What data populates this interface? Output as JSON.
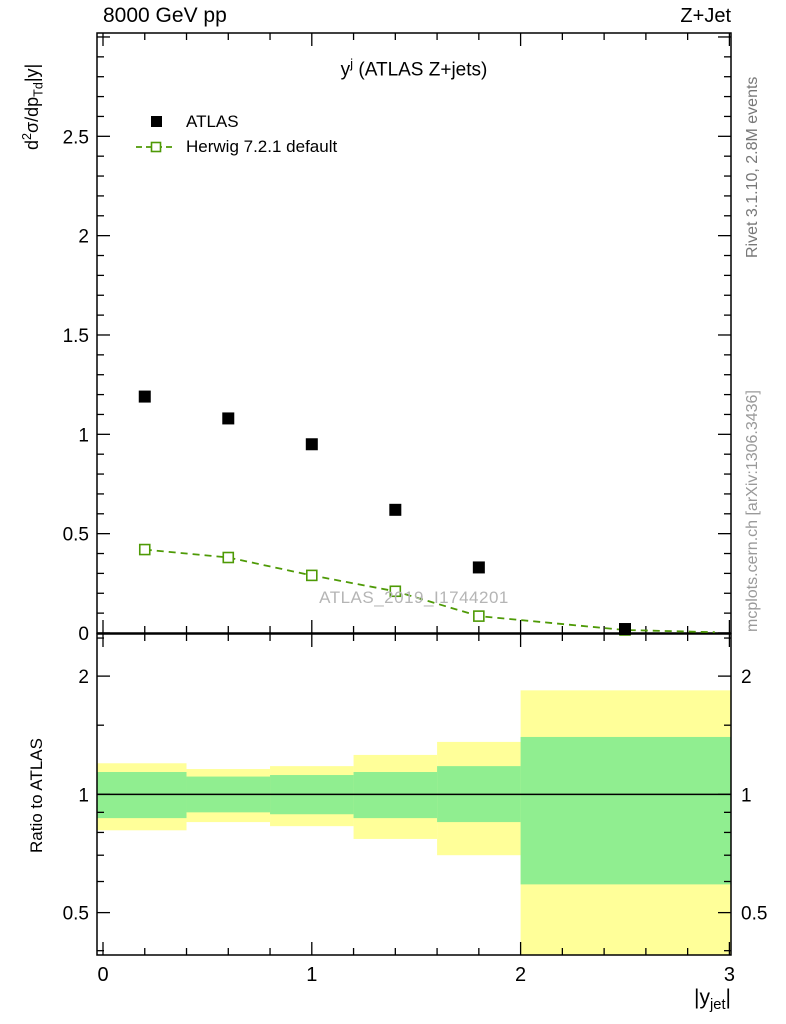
{
  "header": {
    "left": "8000 GeV pp",
    "right": "Z+Jet"
  },
  "sidebar_right": {
    "top": "Rivet 3.1.10,  2.8M events",
    "bottom": "mcplots.cern.ch [arXiv:1306.3436]"
  },
  "watermark": "ATLAS_2019_I1744201",
  "main": {
    "title_segments": [
      {
        "t": "y"
      },
      {
        "t": "j",
        "sup": true
      },
      {
        "t": " (ATLAS Z+jets)"
      }
    ],
    "ylabel_segments": [
      {
        "t": "d"
      },
      {
        "t": "2",
        "sup": true
      },
      {
        "t": "σ/dp"
      },
      {
        "t": "Td",
        "sub": true
      },
      {
        "t": "|y|"
      }
    ],
    "legend": [
      {
        "label": "ATLAS",
        "marker": "filled-square",
        "color": "#000000"
      },
      {
        "label": "Herwig 7.2.1 default",
        "marker": "open-square-dashed",
        "color": "#4e9a06"
      }
    ]
  },
  "ratio": {
    "ylabel": "Ratio to ATLAS"
  },
  "xaxis": {
    "label_segments": [
      {
        "t": "|y"
      },
      {
        "t": "jet",
        "sub": true
      },
      {
        "t": "|"
      }
    ]
  },
  "chart_data": [
    {
      "type": "scatter",
      "title": "y^j (ATLAS Z+jets)",
      "xlabel": "|y_jet|",
      "ylabel": "d^2σ/dp_T d|y|",
      "xlim": [
        0,
        3
      ],
      "ylim": [
        0,
        3.02
      ],
      "x_major_ticks": [
        0,
        1,
        2,
        3
      ],
      "x_minor_step": 0.2,
      "y_tick_labels": [
        0,
        0.5,
        1,
        1.5,
        2,
        2.5
      ],
      "y_minor_step": 0.1,
      "grid": false,
      "legend_position": "top-left-inside",
      "series": [
        {
          "name": "ATLAS",
          "marker": "filled-square",
          "color": "#000000",
          "x": [
            0.2,
            0.6,
            1.0,
            1.4,
            1.8,
            2.5
          ],
          "y": [
            1.19,
            1.08,
            0.95,
            0.62,
            0.33,
            0.02
          ]
        },
        {
          "name": "Herwig 7.2.1 default",
          "marker": "open-square",
          "line": "dashed",
          "color": "#4e9a06",
          "x": [
            0.2,
            0.6,
            1.0,
            1.4,
            1.8,
            2.5
          ],
          "y": [
            0.42,
            0.38,
            0.29,
            0.21,
            0.085,
            0.015
          ],
          "line_extra": [
            [
              2.93,
              0.004
            ]
          ]
        }
      ]
    },
    {
      "type": "ratio-bands",
      "ylabel": "Ratio to ATLAS",
      "xlim": [
        0,
        3
      ],
      "ylim_log": [
        0.39,
        2.56
      ],
      "y_major_ticks": [
        0.5,
        1,
        2
      ],
      "y_minor_ticks": [
        0.4,
        0.6,
        0.7,
        0.8,
        0.9,
        1.5,
        2.5
      ],
      "bin_edges": [
        0,
        0.4,
        0.8,
        1.2,
        1.6,
        2.0,
        3.0
      ],
      "yellow_hi": [
        1.2,
        1.16,
        1.18,
        1.26,
        1.36,
        1.84
      ],
      "yellow_lo": [
        0.81,
        0.85,
        0.83,
        0.77,
        0.7,
        0.35
      ],
      "green_hi": [
        1.14,
        1.11,
        1.12,
        1.14,
        1.18,
        1.4
      ],
      "green_lo": [
        0.87,
        0.9,
        0.89,
        0.87,
        0.85,
        0.59
      ],
      "line_y": 1.0,
      "colors": {
        "yellow": "#ffff99",
        "green": "#90ee90"
      }
    }
  ]
}
